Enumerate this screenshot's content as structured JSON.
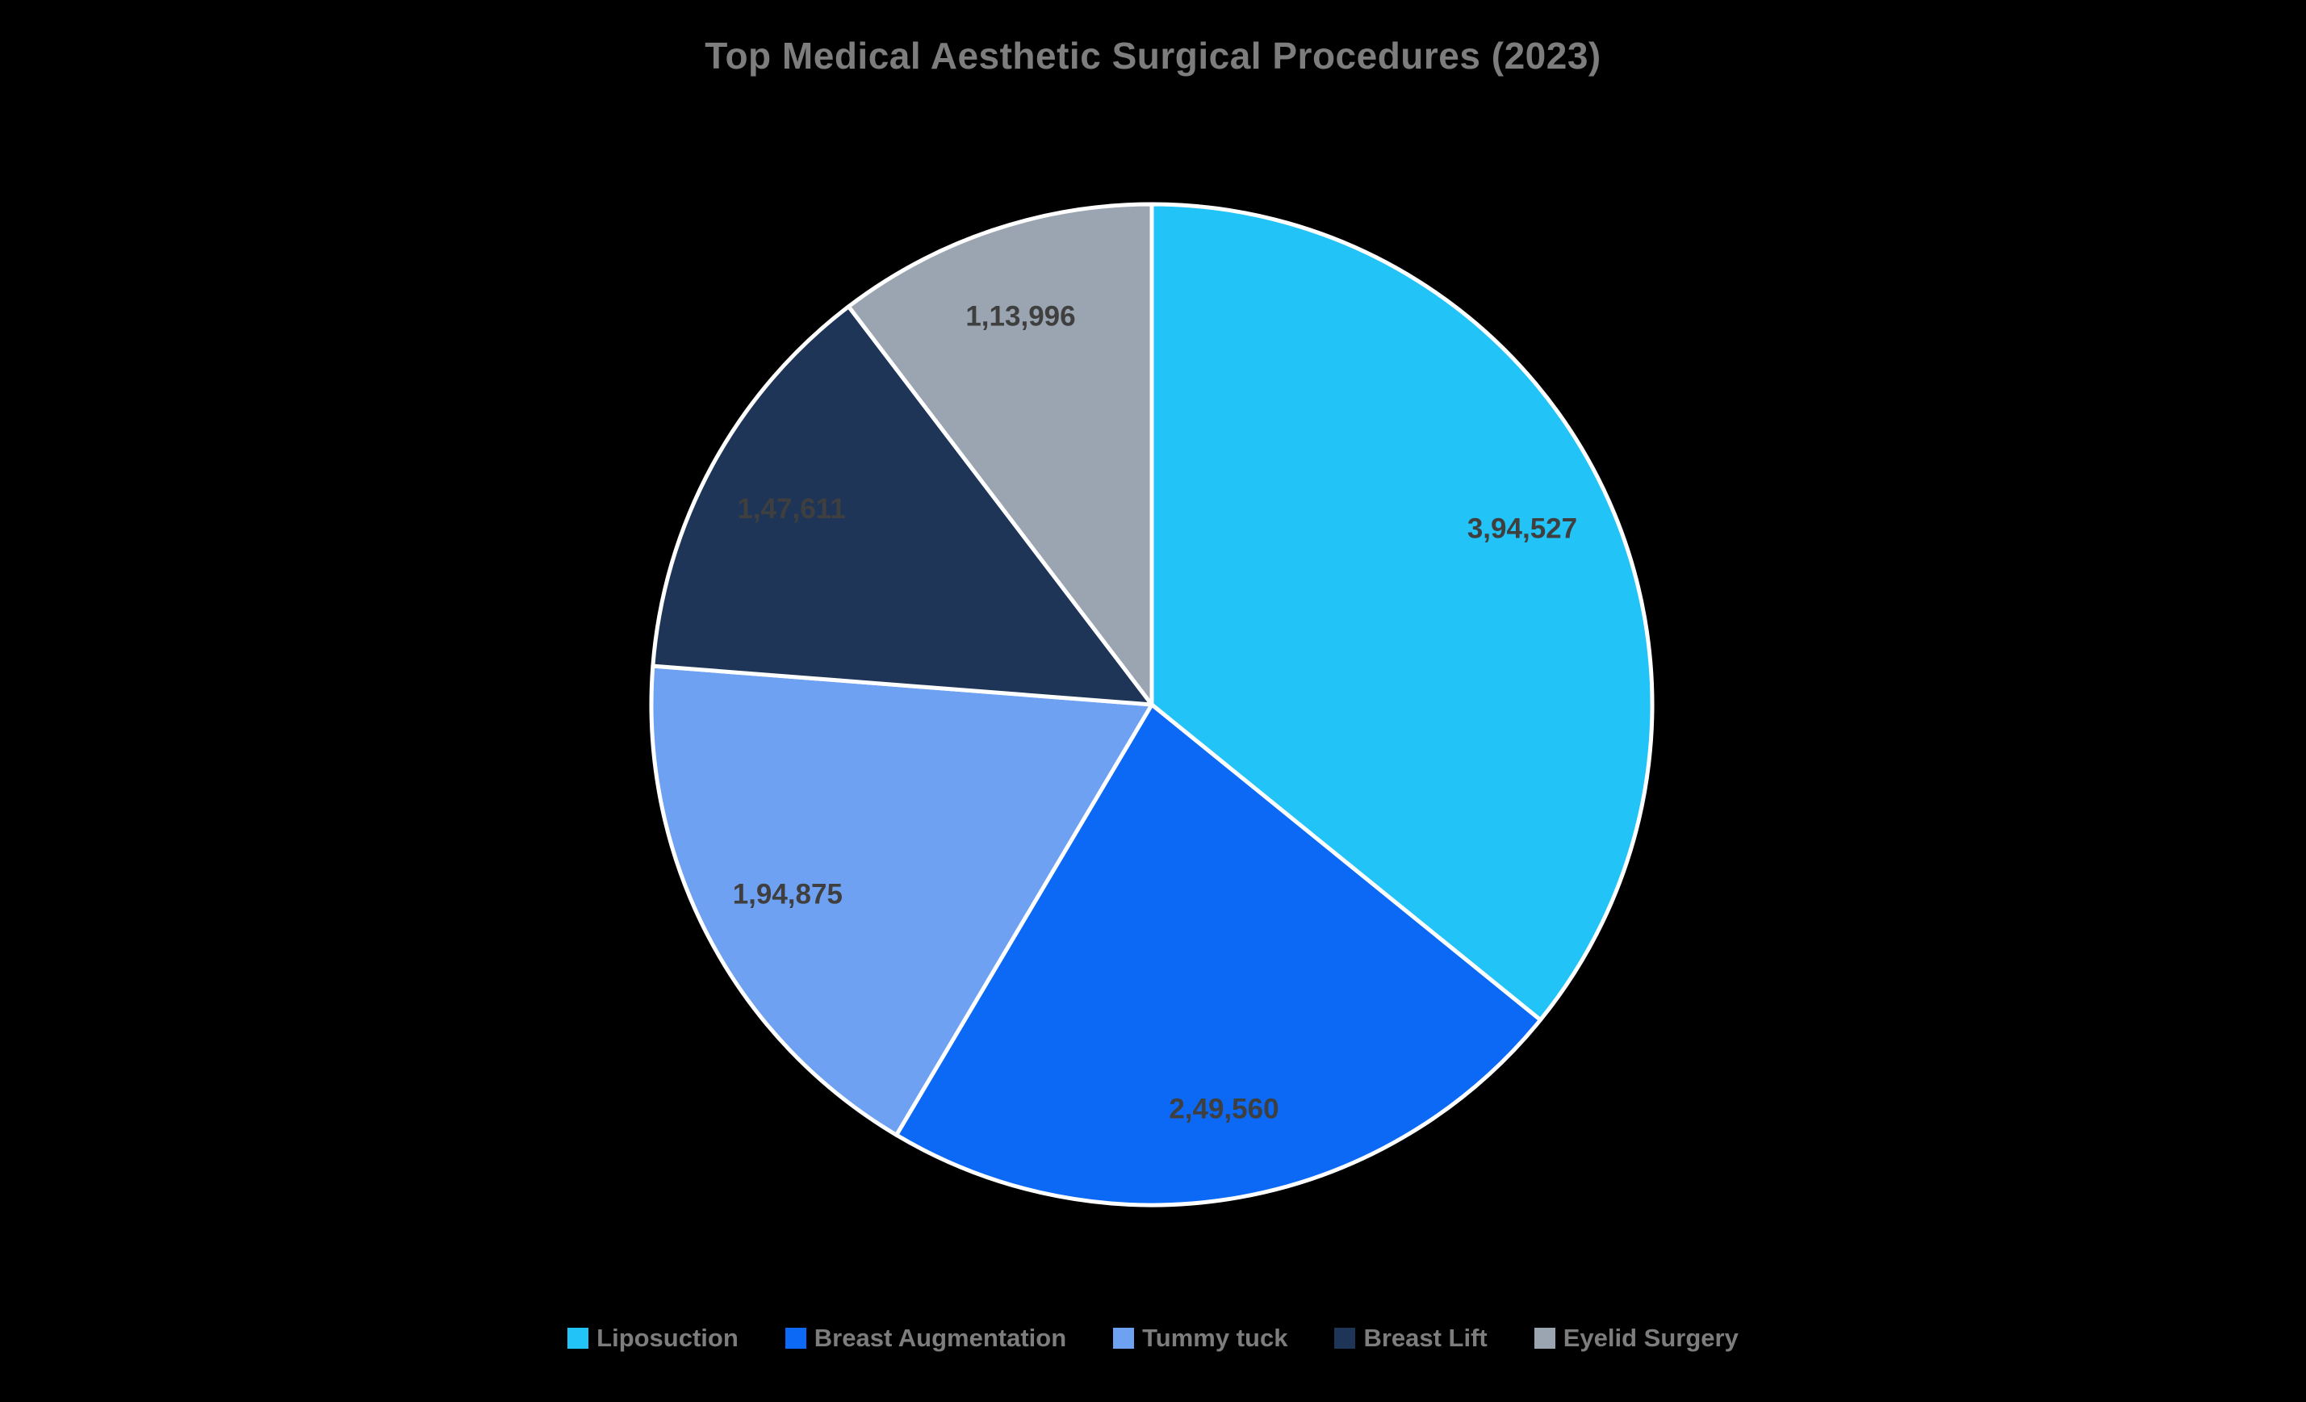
{
  "chart_data": {
    "type": "pie",
    "title": "Top Medical Aesthetic Surgical Procedures (2023)",
    "direction": "clockwise",
    "start_angle_deg": 0,
    "legend_position": "bottom",
    "background_color": "#000000",
    "title_color": "#7d7d7d",
    "label_color": "#3f3f3f",
    "legend_text_color": "#7d7d7d",
    "slice_border_color": "#ffffff",
    "slices": [
      {
        "label": "Liposuction",
        "value": 394527,
        "display_value": "3,94,527",
        "color": "#22c3f7"
      },
      {
        "label": "Breast Augmentation",
        "value": 249560,
        "display_value": "2,49,560",
        "color": "#0b69f5"
      },
      {
        "label": "Tummy tuck",
        "value": 194875,
        "display_value": "1,94,875",
        "color": "#6fa1f2"
      },
      {
        "label": "Breast Lift",
        "value": 147611,
        "display_value": "1,47,611",
        "color": "#1e3558"
      },
      {
        "label": "Eyelid Surgery",
        "value": 113996,
        "display_value": "1,13,996",
        "color": "#9ba5b1"
      }
    ]
  }
}
